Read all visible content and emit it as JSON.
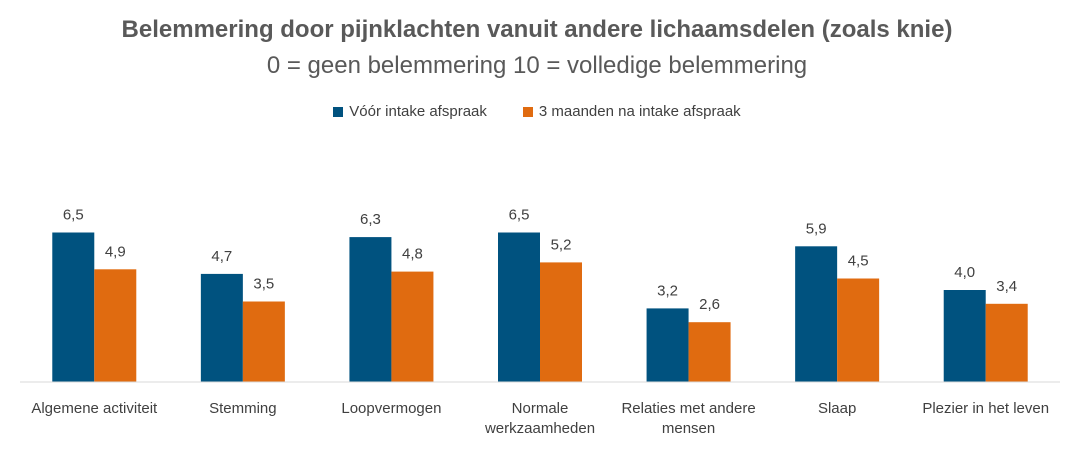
{
  "chart_data": {
    "type": "bar",
    "title": "Belemmering door pijnklachten vanuit andere lichaamsdelen (zoals knie)",
    "subtitle": "0 = geen belemmering  10 = volledige belemmering",
    "categories": [
      [
        "Algemene activiteit"
      ],
      [
        "Stemming"
      ],
      [
        "Loopvermogen"
      ],
      [
        "Normale",
        "werkzaamheden"
      ],
      [
        "Relaties met andere",
        "mensen"
      ],
      [
        "Slaap"
      ],
      [
        "Plezier in het leven"
      ]
    ],
    "series": [
      {
        "name": "Vóór intake afspraak",
        "color": "#00527F",
        "values": [
          6.5,
          4.7,
          6.3,
          6.5,
          3.2,
          5.9,
          4.0
        ],
        "labels": [
          "6,5",
          "4,7",
          "6,3",
          "6,5",
          "3,2",
          "5,9",
          "4,0"
        ]
      },
      {
        "name": "3 maanden na intake afspraak",
        "color": "#E06B10",
        "values": [
          4.9,
          3.5,
          4.8,
          5.2,
          2.6,
          4.5,
          3.4
        ],
        "labels": [
          "4,9",
          "3,5",
          "4,8",
          "5,2",
          "2,6",
          "4,5",
          "3,4"
        ]
      }
    ],
    "ylim": [
      0,
      10
    ],
    "grid": false,
    "legend_position": "top"
  }
}
